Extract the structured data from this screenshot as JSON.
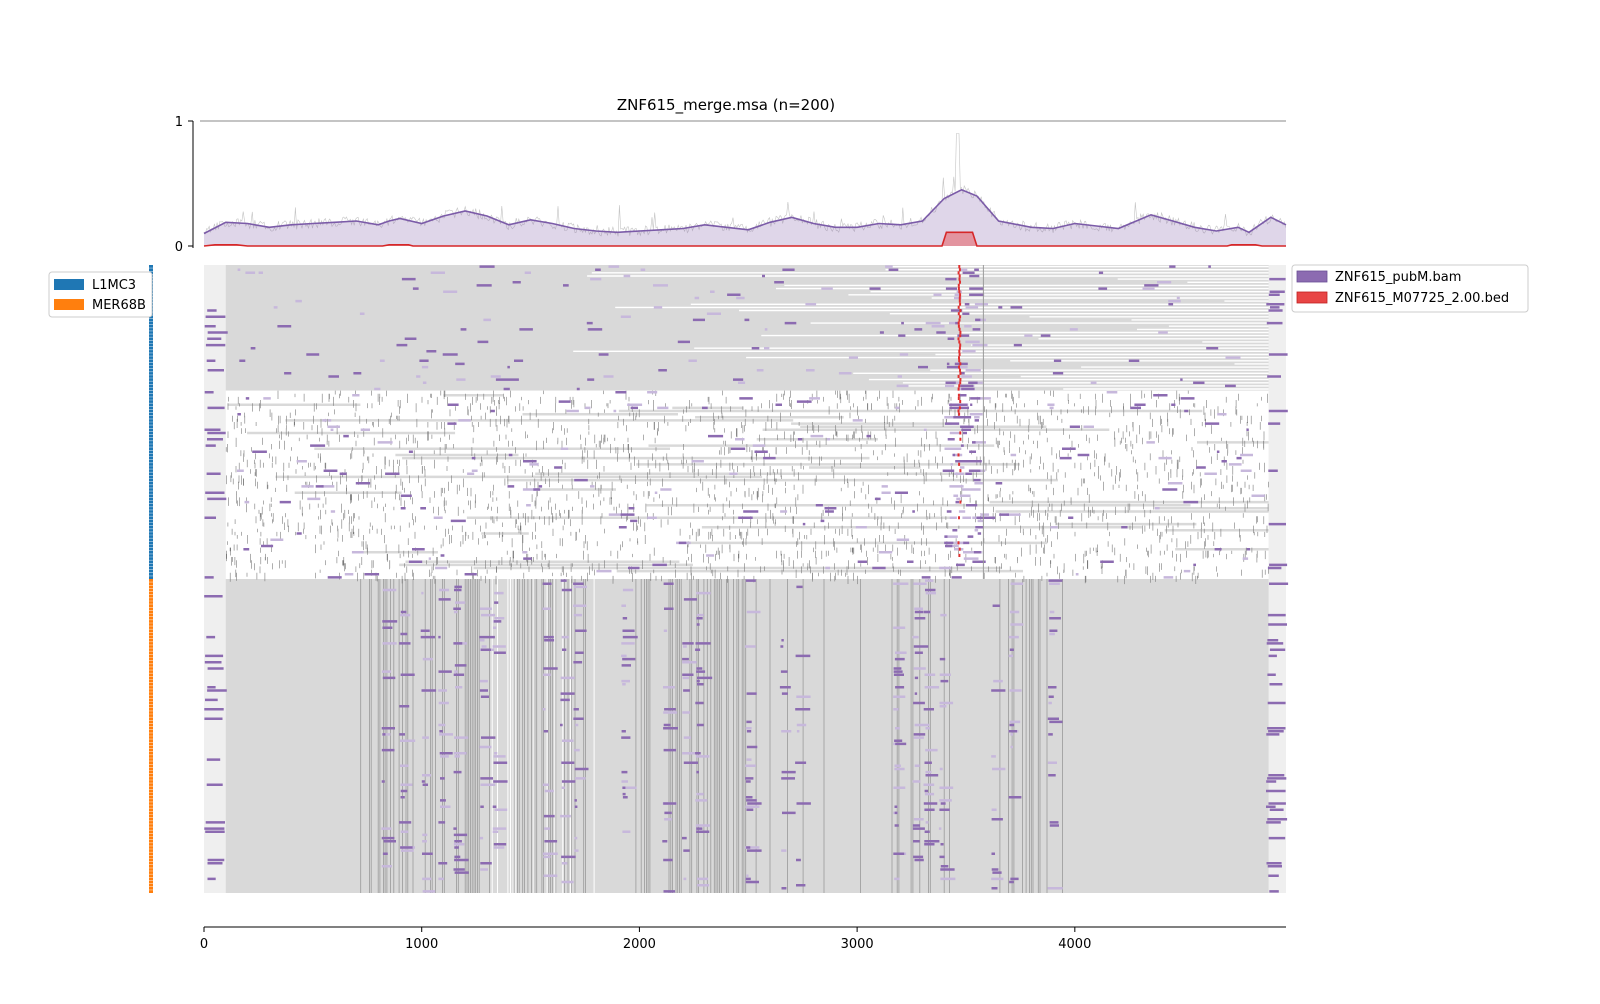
{
  "chart_data": {
    "type": "heatmap",
    "title": "ZNF615_merge.msa (n=200)",
    "xlabel": "",
    "ylabel": "",
    "x_range": [
      0,
      4970
    ],
    "x_ticks": [
      "0",
      "1000",
      "2000",
      "3000",
      "4000"
    ],
    "profile": {
      "y_range": [
        0,
        1
      ],
      "y_ticks": [
        "1",
        "0"
      ],
      "signal_curve": {
        "name": "ZNF615_pubM.bam",
        "points": [
          [
            0,
            0.1
          ],
          [
            100,
            0.19
          ],
          [
            200,
            0.18
          ],
          [
            300,
            0.15
          ],
          [
            400,
            0.17
          ],
          [
            500,
            0.18
          ],
          [
            600,
            0.19
          ],
          [
            700,
            0.2
          ],
          [
            800,
            0.17
          ],
          [
            850,
            0.2
          ],
          [
            900,
            0.22
          ],
          [
            1000,
            0.18
          ],
          [
            1100,
            0.24
          ],
          [
            1200,
            0.28
          ],
          [
            1300,
            0.24
          ],
          [
            1400,
            0.17
          ],
          [
            1500,
            0.21
          ],
          [
            1600,
            0.18
          ],
          [
            1700,
            0.14
          ],
          [
            1800,
            0.12
          ],
          [
            1900,
            0.11
          ],
          [
            2000,
            0.12
          ],
          [
            2100,
            0.13
          ],
          [
            2200,
            0.14
          ],
          [
            2300,
            0.17
          ],
          [
            2400,
            0.15
          ],
          [
            2500,
            0.13
          ],
          [
            2600,
            0.19
          ],
          [
            2700,
            0.23
          ],
          [
            2800,
            0.18
          ],
          [
            2900,
            0.15
          ],
          [
            3000,
            0.15
          ],
          [
            3100,
            0.18
          ],
          [
            3200,
            0.17
          ],
          [
            3300,
            0.2
          ],
          [
            3400,
            0.38
          ],
          [
            3480,
            0.45
          ],
          [
            3550,
            0.4
          ],
          [
            3650,
            0.2
          ],
          [
            3800,
            0.15
          ],
          [
            3900,
            0.14
          ],
          [
            4000,
            0.18
          ],
          [
            4100,
            0.16
          ],
          [
            4200,
            0.14
          ],
          [
            4350,
            0.25
          ],
          [
            4450,
            0.2
          ],
          [
            4550,
            0.15
          ],
          [
            4650,
            0.12
          ],
          [
            4750,
            0.15
          ],
          [
            4800,
            0.11
          ],
          [
            4900,
            0.23
          ],
          [
            4970,
            0.17
          ]
        ]
      },
      "motif_curve": {
        "name": "ZNF615_M07725_2.00.bed",
        "points": [
          [
            0,
            0.0
          ],
          [
            50,
            0.01
          ],
          [
            150,
            0.01
          ],
          [
            200,
            0.0
          ],
          [
            820,
            0.0
          ],
          [
            850,
            0.01
          ],
          [
            940,
            0.01
          ],
          [
            960,
            0.0
          ],
          [
            3390,
            0.0
          ],
          [
            3410,
            0.11
          ],
          [
            3530,
            0.11
          ],
          [
            3550,
            0.0
          ],
          [
            4700,
            0.0
          ],
          [
            4720,
            0.01
          ],
          [
            4830,
            0.01
          ],
          [
            4860,
            0.0
          ],
          [
            4970,
            0.0
          ]
        ]
      }
    },
    "groups": [
      {
        "name": "L1MC3",
        "rows": 100,
        "color": "#1f77b4"
      },
      {
        "name": "MER68B",
        "rows": 100,
        "color": "#ff7f0e"
      }
    ],
    "legend_tracks": [
      {
        "name": "ZNF615_pubM.bam",
        "color": "#8c6bb1"
      },
      {
        "name": "ZNF615_M07725_2.00.bed",
        "color": "#e84545"
      }
    ],
    "colors": {
      "alignment": "#d9d9d9",
      "gap": "#ffffff",
      "signal": "#8c6bb1",
      "signal_light": "#c7b8dc",
      "motif": "#e03030",
      "flank": "#efefef"
    }
  }
}
